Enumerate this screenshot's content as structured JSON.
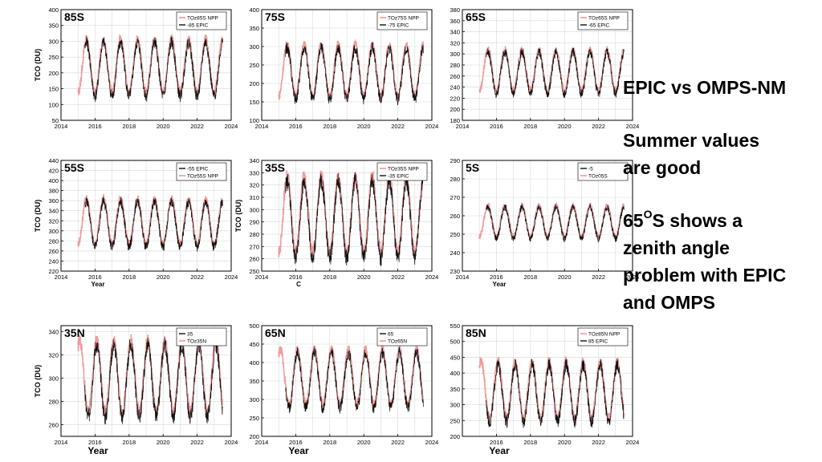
{
  "sidebar": {
    "heading": "EPIC vs OMPS-NM",
    "note1_line1": "Summer values",
    "note1_line2": "are good",
    "note2_lat": "65",
    "note2_deg": "O",
    "note2_line1_rest": "S shows a",
    "note2_line2": "zenith angle",
    "note2_line3": "problem with EPIC",
    "note2_line4": "and OMPS"
  },
  "colors": {
    "omps": "#f08a8a",
    "epic": "#111111",
    "grid": "#d9d9d9"
  },
  "chart_data": [
    {
      "type": "line",
      "title": "85S",
      "ylabel": "TCO (DU)",
      "xlabel": "",
      "ylim": [
        50,
        400
      ],
      "yticks": [
        50,
        100,
        150,
        200,
        250,
        300,
        350,
        400
      ],
      "xlim": [
        2014,
        2024
      ],
      "xticks": [
        2014,
        2016,
        2018,
        2020,
        2022,
        2024
      ],
      "legend": [
        "TOz85S NPP",
        "-85 EPIC"
      ],
      "legend_position": "top-right",
      "epic_first": false,
      "seasonal": {
        "min": 130,
        "max": 300
      },
      "series": [
        {
          "name": "TOz85S NPP",
          "color": "#f08a8a"
        },
        {
          "name": "-85 EPIC",
          "color": "#111111"
        }
      ]
    },
    {
      "type": "line",
      "title": "75S",
      "ylabel": "",
      "xlabel": "",
      "ylim": [
        100,
        400
      ],
      "yticks": [
        100,
        150,
        200,
        250,
        300,
        350,
        400
      ],
      "xlim": [
        2014,
        2024
      ],
      "xticks": [
        2014,
        2016,
        2018,
        2020,
        2022,
        2024
      ],
      "legend": [
        "TOz75S NPP",
        "-75 EPIC"
      ],
      "legend_position": "top-right",
      "epic_first": false,
      "seasonal": {
        "min": 160,
        "max": 300
      },
      "series": [
        {
          "name": "TOz75S NPP",
          "color": "#f08a8a"
        },
        {
          "name": "-75 EPIC",
          "color": "#111111"
        }
      ]
    },
    {
      "type": "line",
      "title": "65S",
      "ylabel": "",
      "xlabel": "",
      "ylim": [
        180,
        380
      ],
      "yticks": [
        180,
        200,
        220,
        240,
        260,
        280,
        300,
        320,
        340,
        360,
        380
      ],
      "xlim": [
        2014,
        2024
      ],
      "xticks": [
        2014,
        2016,
        2018,
        2020,
        2022,
        2024
      ],
      "legend": [
        "TOz65S NPP",
        "-65 EPIC"
      ],
      "legend_position": "top-right",
      "epic_first": false,
      "seasonal": {
        "min": 230,
        "max": 305
      },
      "series": [
        {
          "name": "TOz65S NPP",
          "color": "#f08a8a"
        },
        {
          "name": "-65 EPIC",
          "color": "#111111"
        }
      ]
    },
    {
      "type": "line",
      "title": "55S",
      "ylabel": "TCO (DU)",
      "xlabel": "Year",
      "ylim": [
        220,
        440
      ],
      "yticks": [
        220,
        240,
        260,
        280,
        300,
        320,
        340,
        360,
        380,
        400,
        420,
        440
      ],
      "xlim": [
        2014,
        2024
      ],
      "xticks": [
        2014,
        2016,
        2018,
        2020,
        2022,
        2024
      ],
      "legend": [
        "-55 EPIC",
        "TOz55S NPP"
      ],
      "legend_position": "top-right",
      "epic_first": true,
      "seasonal": {
        "min": 270,
        "max": 360
      },
      "series": [
        {
          "name": "-55 EPIC",
          "color": "#111111"
        },
        {
          "name": "TOz55S NPP",
          "color": "#f08a8a"
        }
      ]
    },
    {
      "type": "line",
      "title": "35S",
      "ylabel": "TCO (DU)",
      "xlabel": "C",
      "ylim": [
        250,
        340
      ],
      "yticks": [
        250,
        260,
        270,
        280,
        290,
        300,
        310,
        320,
        330,
        340
      ],
      "xlim": [
        2014,
        2024
      ],
      "xticks": [
        2014,
        2016,
        2018,
        2020,
        2022,
        2024
      ],
      "legend": [
        "TOz35S NPP",
        "-35 EPIC"
      ],
      "legend_position": "top-right",
      "epic_first": false,
      "seasonal": {
        "min": 262,
        "max": 325
      },
      "series": [
        {
          "name": "TOz35S NPP",
          "color": "#f08a8a"
        },
        {
          "name": "-35 EPIC",
          "color": "#111111"
        }
      ]
    },
    {
      "type": "line",
      "title": "5S",
      "ylabel": "",
      "xlabel": "Year",
      "ylim": [
        230,
        290
      ],
      "yticks": [
        230,
        240,
        250,
        260,
        270,
        280,
        290
      ],
      "xlim": [
        2014,
        2024
      ],
      "xticks": [
        2014,
        2016,
        2018,
        2020,
        2022,
        2024
      ],
      "legend": [
        "-5",
        "TOz05S"
      ],
      "legend_position": "top-right",
      "epic_first": true,
      "seasonal": {
        "min": 248,
        "max": 265
      },
      "series": [
        {
          "name": "-5",
          "color": "#111111"
        },
        {
          "name": "TOz05S",
          "color": "#f08a8a"
        }
      ]
    },
    {
      "type": "line",
      "title": "35N",
      "ylabel": "TCO (DU)",
      "xlabel": "Year",
      "ylim": [
        250,
        345
      ],
      "yticks": [
        260,
        280,
        300,
        320,
        340
      ],
      "xlim": [
        2014,
        2024
      ],
      "xticks": [
        2014,
        2016,
        2018,
        2020,
        2022,
        2024
      ],
      "legend": [
        "35",
        "TOz35N"
      ],
      "legend_position": "top-right",
      "epic_first": true,
      "seasonal": {
        "min": 268,
        "max": 330
      },
      "series": [
        {
          "name": "35",
          "color": "#111111"
        },
        {
          "name": "TOz35N",
          "color": "#f08a8a"
        }
      ]
    },
    {
      "type": "line",
      "title": "65N",
      "ylabel": "",
      "xlabel": "Year",
      "ylim": [
        200,
        500
      ],
      "yticks": [
        200,
        250,
        300,
        350,
        400,
        450,
        500
      ],
      "xlim": [
        2014,
        2024
      ],
      "xticks": [
        2014,
        2016,
        2018,
        2020,
        2022,
        2024
      ],
      "legend": [
        "65",
        "TOz65N"
      ],
      "legend_position": "top-right",
      "epic_first": true,
      "seasonal": {
        "min": 280,
        "max": 430
      },
      "series": [
        {
          "name": "65",
          "color": "#111111"
        },
        {
          "name": "TOz65N",
          "color": "#f08a8a"
        }
      ]
    },
    {
      "type": "line",
      "title": "85N",
      "ylabel": "",
      "xlabel": "Year",
      "ylim": [
        200,
        550
      ],
      "yticks": [
        200,
        250,
        300,
        350,
        400,
        450,
        500,
        550
      ],
      "xlim": [
        2014,
        2024
      ],
      "xticks": [
        2016,
        2018,
        2020,
        2022,
        2024
      ],
      "legend": [
        "TOz85N NPP",
        "85 EPIC"
      ],
      "legend_position": "top-right",
      "epic_first": false,
      "seasonal": {
        "min": 250,
        "max": 430
      },
      "series": [
        {
          "name": "TOz85N NPP",
          "color": "#f08a8a"
        },
        {
          "name": "85 EPIC",
          "color": "#111111"
        }
      ]
    }
  ]
}
